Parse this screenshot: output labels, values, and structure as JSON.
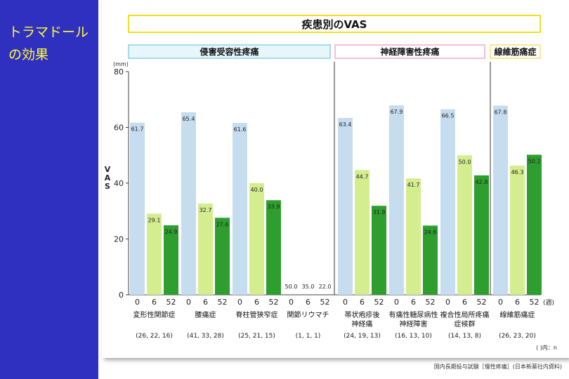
{
  "sidebar": {
    "title_line1": "トラマドール",
    "title_line2": "の効果"
  },
  "source": "国内長期投与試験［慢性疼痛］(日本新薬社内資料)",
  "colors": {
    "week0": "#c6dcef",
    "week6": "#d4ed8e",
    "week52": "#2e9e2e",
    "sidebar": "#3030c0",
    "title_yellow": "#f0e020",
    "header_nociceptive": "#8ed0e8",
    "header_neuropathic": "#f0a8c8",
    "header_fibro": "#f0e070"
  },
  "chart_data": {
    "type": "bar",
    "title": "疾患別のVAS",
    "ylabel": "VAS",
    "yunit": "(mm)",
    "ylim": [
      0,
      80
    ],
    "yticks": [
      0,
      20,
      40,
      60,
      80
    ],
    "time_points": [
      "0",
      "6",
      "52"
    ],
    "time_unit": "(週)",
    "n_note": "(  )内：n",
    "groups": [
      {
        "name": "侵害受容性疼痛",
        "style": "nociceptive",
        "diseases": [
          {
            "name": [
              "変形性関節症"
            ],
            "n": "(26, 22, 16)",
            "values": [
              61.7,
              29.1,
              24.9
            ]
          },
          {
            "name": [
              "腰痛症"
            ],
            "n": "(41, 33, 28)",
            "values": [
              65.4,
              32.7,
              27.6
            ]
          },
          {
            "name": [
              "脊柱管狭窄症"
            ],
            "n": "(25, 21, 15)",
            "values": [
              61.6,
              40.0,
              33.9
            ]
          },
          {
            "name": [
              "関節リウマチ"
            ],
            "n": "(1,   1,   1)",
            "values": [
              50.0,
              35.0,
              22.0
            ],
            "no_bars": true
          }
        ]
      },
      {
        "name": "神経障害性疼痛",
        "style": "neuropathic",
        "diseases": [
          {
            "name": [
              "帯状疱疹後",
              "神経痛"
            ],
            "n": "(24, 19, 13)",
            "values": [
              63.4,
              44.7,
              31.9
            ]
          },
          {
            "name": [
              "有痛性糖尿病性",
              "神経障害"
            ],
            "n": "(16, 13, 10)",
            "values": [
              67.9,
              41.7,
              24.8
            ]
          },
          {
            "name": [
              "複合性局所疼痛",
              "症候群"
            ],
            "n": "(14, 13,   8)",
            "values": [
              66.5,
              50.0,
              42.8
            ]
          }
        ]
      },
      {
        "name": "線維筋痛症",
        "style": "fibro",
        "diseases": [
          {
            "name": [
              "線維筋痛症"
            ],
            "n": "(26, 23, 20)",
            "values": [
              67.8,
              46.3,
              50.2
            ]
          }
        ]
      }
    ]
  }
}
